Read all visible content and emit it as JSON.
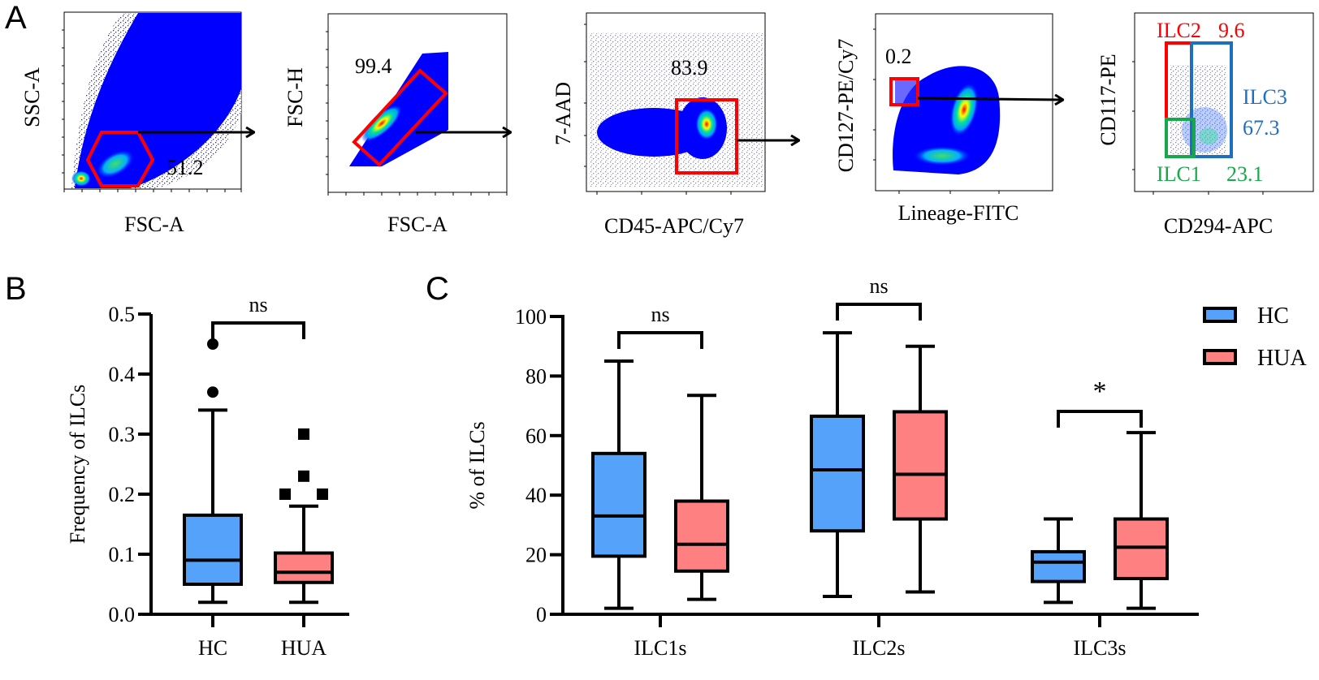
{
  "colors": {
    "hc": "#55a2fb",
    "hua": "#fe8080",
    "gate_red": "#ff0000",
    "gate_blue": "#1f6fc1",
    "gate_green": "#16a84a",
    "density_low": "#0000ff",
    "density_mid": "#00e0ff",
    "density_high": "#ff0000",
    "axis": "#000000"
  },
  "panel_labels": {
    "a": "A",
    "b": "B",
    "c": "C"
  },
  "panel_a": {
    "plots": [
      {
        "id": "fsc-ssc",
        "ylabel": "SSC-A",
        "xlabel": "FSC-A",
        "gate": "hexagon",
        "gate_value": "51.2"
      },
      {
        "id": "singlets",
        "ylabel": "FSC-H",
        "xlabel": "FSC-A",
        "gate": "rotated-rect",
        "gate_value": "99.4"
      },
      {
        "id": "live-cd45",
        "ylabel": "7-AAD",
        "xlabel": "CD45-APC/Cy7",
        "gate": "rect",
        "gate_value": "83.9"
      },
      {
        "id": "lineage",
        "ylabel": "CD127-PE/Cy7",
        "xlabel": "Lineage-FITC",
        "gate": "rect",
        "gate_value": "0.2"
      },
      {
        "id": "ilc-subsets",
        "ylabel": "CD117-PE",
        "xlabel": "CD294-APC",
        "gates": [
          {
            "name": "ILC2",
            "value": "9.6",
            "color": "red"
          },
          {
            "name": "ILC3",
            "value": "67.3",
            "color": "blue"
          },
          {
            "name": "ILC1",
            "value": "23.1",
            "color": "green"
          }
        ]
      }
    ]
  },
  "chart_data": [
    {
      "type": "box",
      "title": "",
      "panel": "B",
      "xlabel": "",
      "ylabel": "Frequency of ILCs",
      "ylim": [
        0,
        0.5
      ],
      "yticks": [
        "0.0",
        "0.1",
        "0.2",
        "0.3",
        "0.4",
        "0.5"
      ],
      "categories": [
        "HC",
        "HUA"
      ],
      "series": [
        {
          "name": "HC",
          "min": 0.02,
          "q1": 0.05,
          "median": 0.09,
          "q3": 0.165,
          "max": 0.34,
          "outliers": [
            0.37,
            0.45
          ],
          "outlier_marker": "circle"
        },
        {
          "name": "HUA",
          "min": 0.02,
          "q1": 0.053,
          "median": 0.07,
          "q3": 0.102,
          "max": 0.18,
          "outliers": [
            0.2,
            0.2,
            0.23,
            0.3
          ],
          "outlier_marker": "square"
        }
      ],
      "significance": [
        {
          "between": [
            "HC",
            "HUA"
          ],
          "label": "ns"
        }
      ]
    },
    {
      "type": "box",
      "title": "",
      "panel": "C",
      "xlabel": "",
      "ylabel": "% of ILCs",
      "ylim": [
        0,
        100
      ],
      "yticks": [
        "0",
        "20",
        "40",
        "60",
        "80",
        "100"
      ],
      "categories": [
        "ILC1s",
        "ILC2s",
        "ILC3s"
      ],
      "legend": {
        "position": "top-right",
        "entries": [
          "HC",
          "HUA"
        ]
      },
      "series": [
        {
          "name": "HC",
          "boxes": [
            {
              "min": 2,
              "q1": 19.5,
              "median": 33,
              "q3": 54,
              "max": 85
            },
            {
              "min": 6,
              "q1": 28,
              "median": 48.5,
              "q3": 66.5,
              "max": 94.5
            },
            {
              "min": 4,
              "q1": 11,
              "median": 17.5,
              "q3": 21,
              "max": 32
            }
          ]
        },
        {
          "name": "HUA",
          "boxes": [
            {
              "min": 5,
              "q1": 14.5,
              "median": 23.5,
              "q3": 38,
              "max": 73.5
            },
            {
              "min": 7.5,
              "q1": 32,
              "median": 47,
              "q3": 68,
              "max": 90
            },
            {
              "min": 2,
              "q1": 12,
              "median": 22.5,
              "q3": 32,
              "max": 61
            }
          ]
        }
      ],
      "significance": [
        {
          "category": "ILC1s",
          "label": "ns"
        },
        {
          "category": "ILC2s",
          "label": "ns"
        },
        {
          "category": "ILC3s",
          "label": "*"
        }
      ]
    }
  ]
}
